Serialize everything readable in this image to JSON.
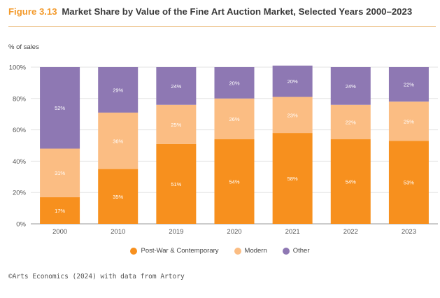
{
  "header": {
    "figure_label": "Figure 3.13",
    "title": "Market Share by Value of the Fine Art Auction Market, Selected Years 2000–2023"
  },
  "source": "©Arts Economics (2024) with data from Artory",
  "colors": {
    "Post-War & Contemporary": "#f7901e",
    "Modern": "#fbbd83",
    "Other": "#8e78b3"
  },
  "chart_data": {
    "type": "bar",
    "stacked": true,
    "categories": [
      "2000",
      "2010",
      "2019",
      "2020",
      "2021",
      "2022",
      "2023"
    ],
    "series": [
      {
        "name": "Post-War & Contemporary",
        "values": [
          17,
          35,
          51,
          54,
          58,
          54,
          53
        ]
      },
      {
        "name": "Modern",
        "values": [
          31,
          36,
          25,
          26,
          23,
          22,
          25
        ]
      },
      {
        "name": "Other",
        "values": [
          52,
          29,
          24,
          20,
          20,
          24,
          22
        ]
      }
    ],
    "ylabel": "% of sales",
    "ylim": [
      0,
      100
    ],
    "yticks": [
      "0%",
      "20%",
      "40%",
      "60%",
      "80%",
      "100%"
    ],
    "legend_position": "bottom"
  }
}
